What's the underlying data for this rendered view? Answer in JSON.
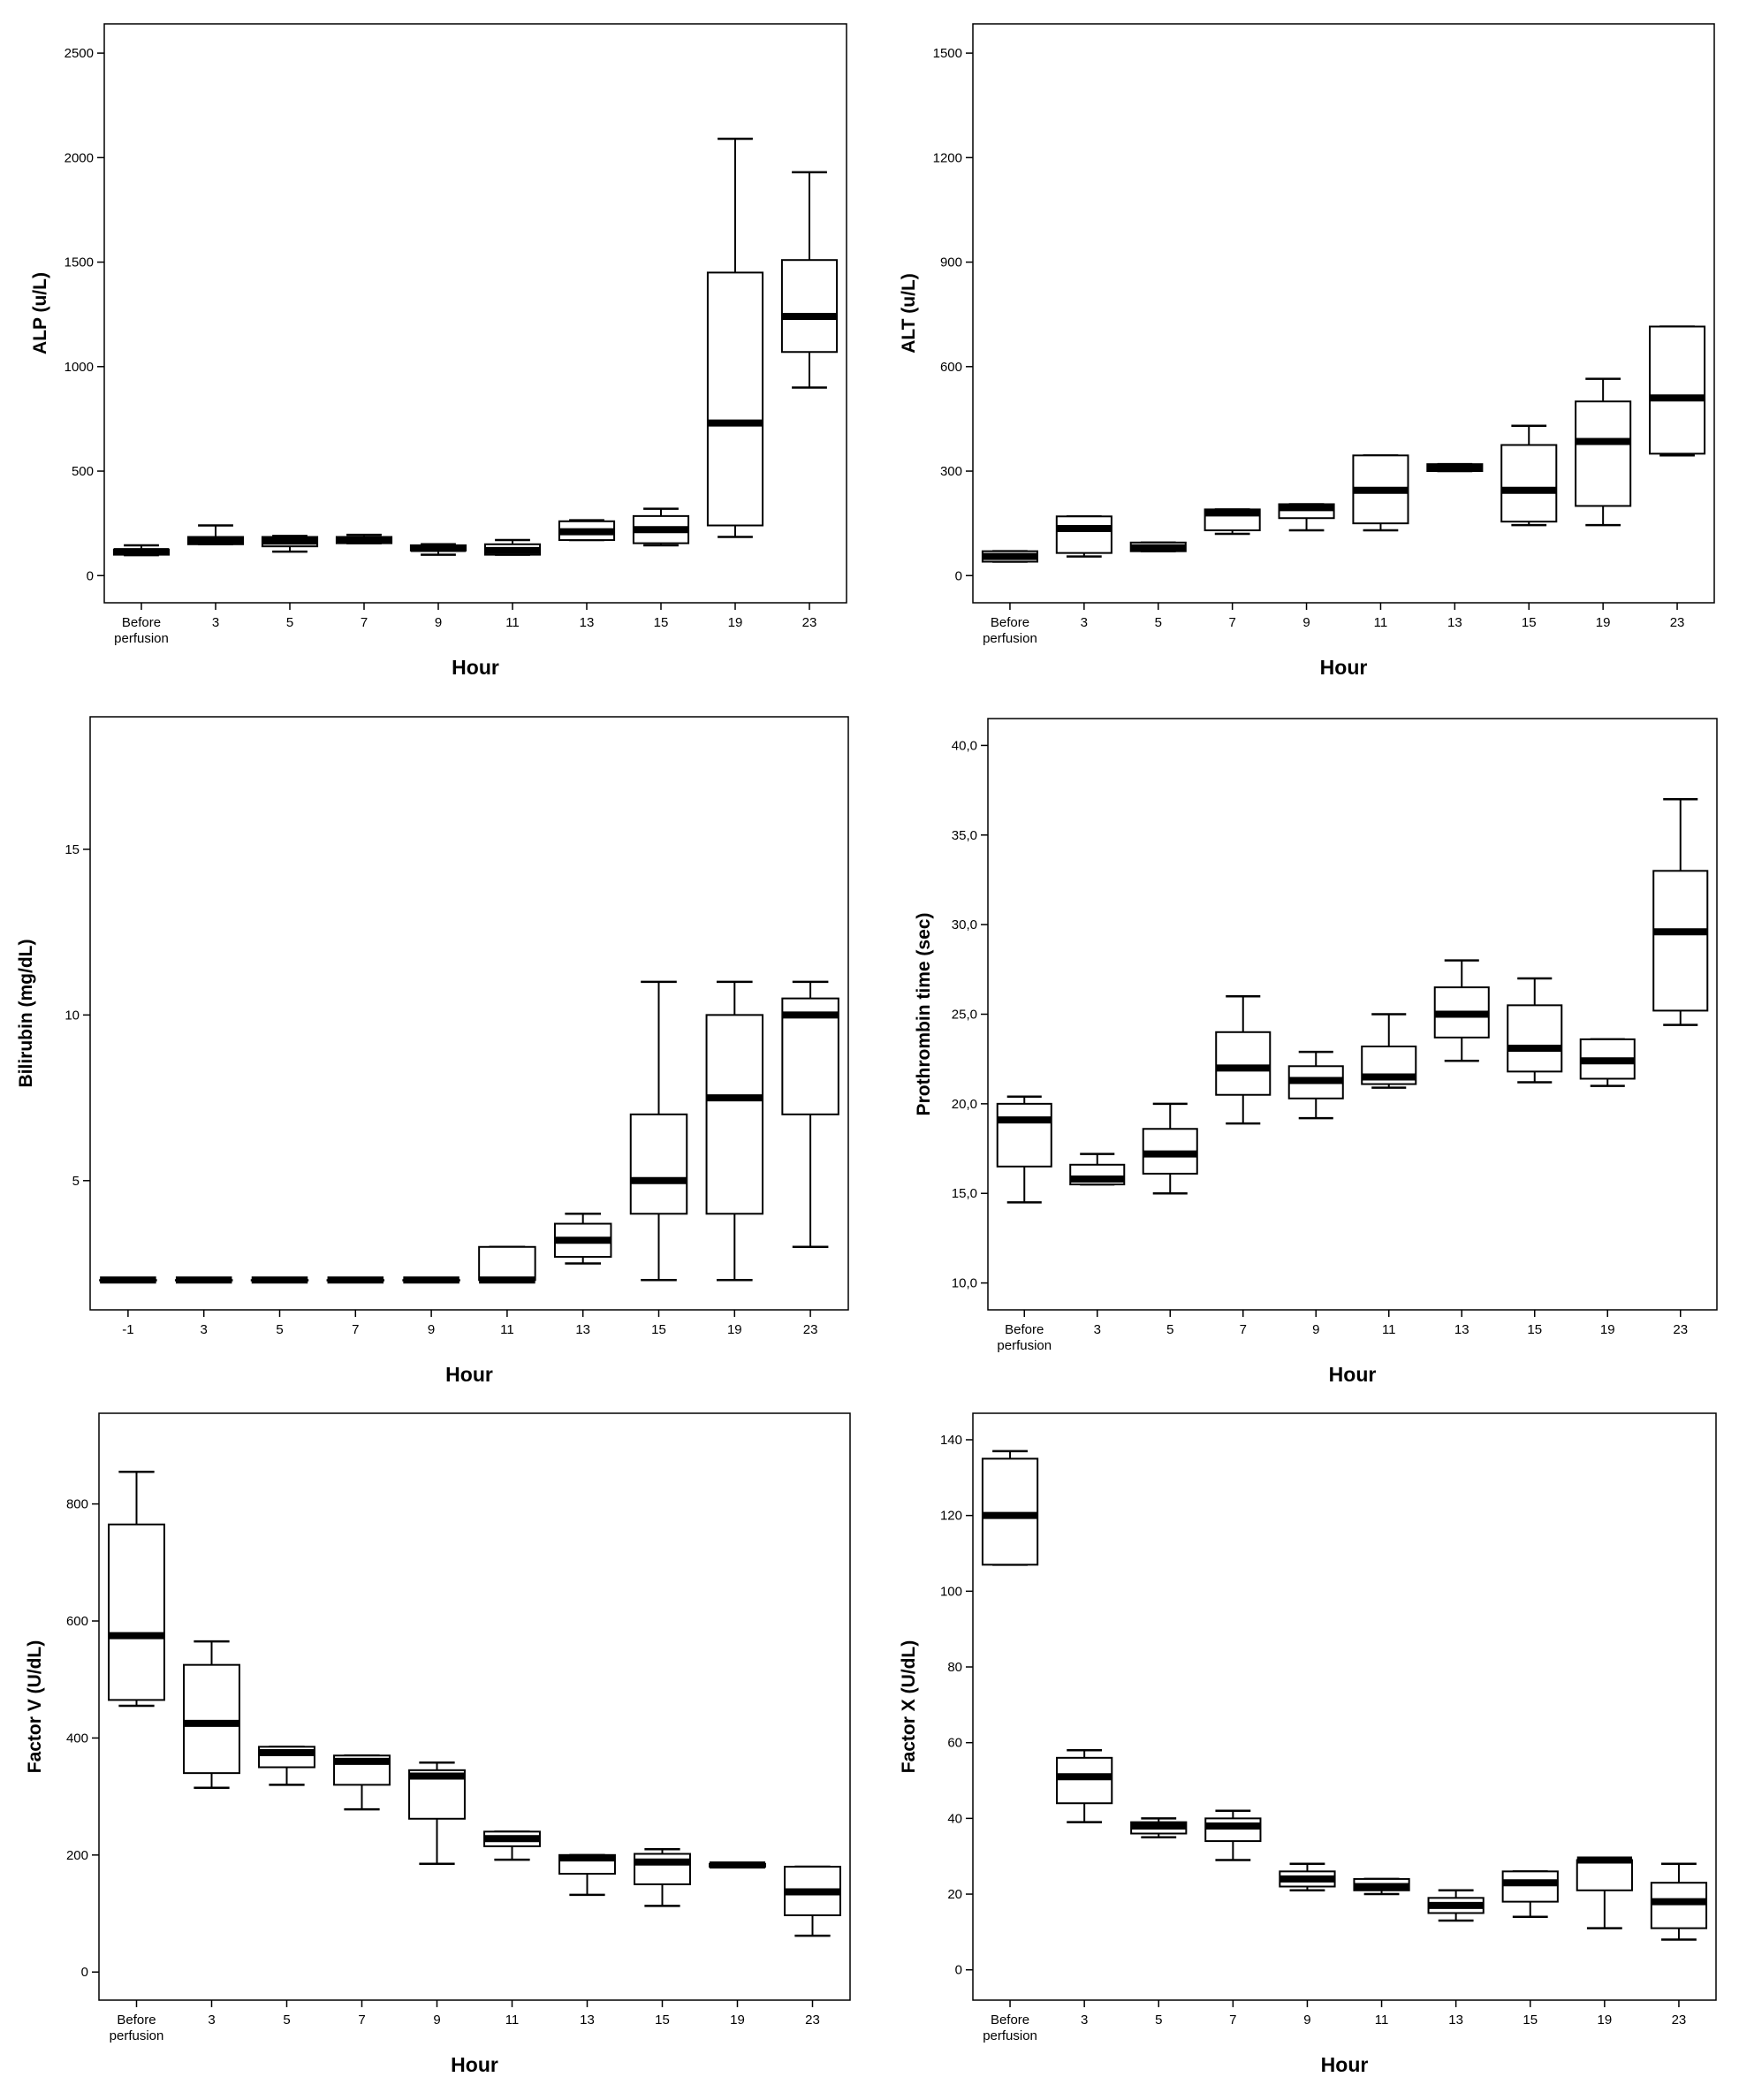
{
  "figure": {
    "background": "#ffffff",
    "ink": "#000000"
  },
  "chart_data": [
    {
      "type": "box",
      "ylabel": "ALP (u/L)",
      "xlabel": "Hour",
      "categories": [
        "Before perfusion",
        "3",
        "5",
        "7",
        "9",
        "11",
        "13",
        "15",
        "19",
        "23"
      ],
      "yticks": [
        "0",
        "500",
        "1000",
        "1500",
        "2000",
        "2500"
      ],
      "ylim": [
        -130,
        2640
      ],
      "boxes": [
        {
          "min": 98,
          "q1": 100,
          "median": 115,
          "q3": 125,
          "max": 145
        },
        {
          "min": 150,
          "q1": 150,
          "median": 170,
          "q3": 185,
          "max": 240
        },
        {
          "min": 115,
          "q1": 140,
          "median": 165,
          "q3": 185,
          "max": 190
        },
        {
          "min": 155,
          "q1": 155,
          "median": 170,
          "q3": 185,
          "max": 195
        },
        {
          "min": 100,
          "q1": 120,
          "median": 130,
          "q3": 145,
          "max": 150
        },
        {
          "min": 100,
          "q1": 100,
          "median": 120,
          "q3": 150,
          "max": 170
        },
        {
          "min": 170,
          "q1": 170,
          "median": 210,
          "q3": 260,
          "max": 265
        },
        {
          "min": 145,
          "q1": 155,
          "median": 220,
          "q3": 285,
          "max": 320
        },
        {
          "min": 185,
          "q1": 240,
          "median": 730,
          "q3": 1450,
          "max": 2090
        },
        {
          "min": 900,
          "q1": 1070,
          "median": 1240,
          "q3": 1510,
          "max": 1930
        }
      ]
    },
    {
      "type": "box",
      "ylabel": "ALT (u/L)",
      "xlabel": "Hour",
      "categories": [
        "Before perfusion",
        "3",
        "5",
        "7",
        "9",
        "11",
        "13",
        "15",
        "19",
        "23"
      ],
      "yticks": [
        "0",
        "300",
        "600",
        "900",
        "1200",
        "1500"
      ],
      "ylim": [
        -78,
        1584
      ],
      "boxes": [
        {
          "min": 40,
          "q1": 40,
          "median": 55,
          "q3": 70,
          "max": 70
        },
        {
          "min": 55,
          "q1": 65,
          "median": 135,
          "q3": 170,
          "max": 170
        },
        {
          "min": 70,
          "q1": 70,
          "median": 80,
          "q3": 95,
          "max": 95
        },
        {
          "min": 120,
          "q1": 130,
          "median": 180,
          "q3": 190,
          "max": 190
        },
        {
          "min": 130,
          "q1": 165,
          "median": 195,
          "q3": 205,
          "max": 205
        },
        {
          "min": 130,
          "q1": 150,
          "median": 245,
          "q3": 345,
          "max": 345
        },
        {
          "min": 300,
          "q1": 300,
          "median": 310,
          "q3": 320,
          "max": 320
        },
        {
          "min": 145,
          "q1": 155,
          "median": 245,
          "q3": 375,
          "max": 430
        },
        {
          "min": 145,
          "q1": 200,
          "median": 385,
          "q3": 500,
          "max": 565
        },
        {
          "min": 345,
          "q1": 350,
          "median": 510,
          "q3": 715,
          "max": 715
        }
      ]
    },
    {
      "type": "box",
      "ylabel": "Bilirubin (mg/dL)",
      "xlabel": "Hour",
      "categories": [
        "-1",
        "3",
        "5",
        "7",
        "9",
        "11",
        "13",
        "15",
        "19",
        "23"
      ],
      "yticks": [
        "5",
        "10",
        "15"
      ],
      "ylim": [
        1.1,
        19.0
      ],
      "boxes": [
        {
          "min": 2.0,
          "q1": 2.0,
          "median": 2.0,
          "q3": 2.0,
          "max": 2.0
        },
        {
          "min": 2.0,
          "q1": 2.0,
          "median": 2.0,
          "q3": 2.0,
          "max": 2.0
        },
        {
          "min": 2.0,
          "q1": 2.0,
          "median": 2.0,
          "q3": 2.0,
          "max": 2.0
        },
        {
          "min": 2.0,
          "q1": 2.0,
          "median": 2.0,
          "q3": 2.0,
          "max": 2.0
        },
        {
          "min": 2.0,
          "q1": 2.0,
          "median": 2.0,
          "q3": 2.0,
          "max": 2.0
        },
        {
          "min": 2.0,
          "q1": 2.0,
          "median": 2.0,
          "q3": 3.0,
          "max": 3.0
        },
        {
          "min": 2.5,
          "q1": 2.7,
          "median": 3.2,
          "q3": 3.7,
          "max": 4.0
        },
        {
          "min": 2.0,
          "q1": 4.0,
          "median": 5.0,
          "q3": 7.0,
          "max": 11.0
        },
        {
          "min": 2.0,
          "q1": 4.0,
          "median": 7.5,
          "q3": 10.0,
          "max": 11.0
        },
        {
          "min": 3.0,
          "q1": 7.0,
          "median": 10.0,
          "q3": 10.5,
          "max": 11.0
        }
      ]
    },
    {
      "type": "box",
      "ylabel": "Prothrombin time (sec)",
      "xlabel": "Hour",
      "categories": [
        "Before perfusion",
        "3",
        "5",
        "7",
        "9",
        "11",
        "13",
        "15",
        "19",
        "23"
      ],
      "yticks": [
        "10,0",
        "15,0",
        "20,0",
        "25,0",
        "30,0",
        "35,0",
        "40,0"
      ],
      "ylim": [
        8.5,
        41.5
      ],
      "boxes": [
        {
          "min": 14.5,
          "q1": 16.5,
          "median": 19.1,
          "q3": 20.0,
          "max": 20.4
        },
        {
          "min": 15.5,
          "q1": 15.5,
          "median": 15.8,
          "q3": 16.6,
          "max": 17.2
        },
        {
          "min": 15.0,
          "q1": 16.1,
          "median": 17.2,
          "q3": 18.6,
          "max": 20.0
        },
        {
          "min": 18.9,
          "q1": 20.5,
          "median": 22.0,
          "q3": 24.0,
          "max": 26.0
        },
        {
          "min": 19.2,
          "q1": 20.3,
          "median": 21.3,
          "q3": 22.1,
          "max": 22.9
        },
        {
          "min": 20.9,
          "q1": 21.1,
          "median": 21.5,
          "q3": 23.2,
          "max": 25.0
        },
        {
          "min": 22.4,
          "q1": 23.7,
          "median": 25.0,
          "q3": 26.5,
          "max": 28.0
        },
        {
          "min": 21.2,
          "q1": 21.8,
          "median": 23.1,
          "q3": 25.5,
          "max": 27.0
        },
        {
          "min": 21.0,
          "q1": 21.4,
          "median": 22.4,
          "q3": 23.6,
          "max": 23.6
        },
        {
          "min": 24.4,
          "q1": 25.2,
          "median": 29.6,
          "q3": 33.0,
          "max": 37.0
        }
      ]
    },
    {
      "type": "box",
      "ylabel": "Factor V (U/dL)",
      "xlabel": "Hour",
      "categories": [
        "Before perfusion",
        "3",
        "5",
        "7",
        "9",
        "11",
        "13",
        "15",
        "19",
        "23"
      ],
      "yticks": [
        "0",
        "200",
        "400",
        "600",
        "800"
      ],
      "ylim": [
        -48,
        955
      ],
      "boxes": [
        {
          "min": 455,
          "q1": 465,
          "median": 575,
          "q3": 765,
          "max": 855
        },
        {
          "min": 315,
          "q1": 340,
          "median": 425,
          "q3": 525,
          "max": 565
        },
        {
          "min": 320,
          "q1": 350,
          "median": 375,
          "q3": 385,
          "max": 385
        },
        {
          "min": 278,
          "q1": 320,
          "median": 360,
          "q3": 370,
          "max": 370
        },
        {
          "min": 185,
          "q1": 262,
          "median": 335,
          "q3": 345,
          "max": 358
        },
        {
          "min": 192,
          "q1": 215,
          "median": 228,
          "q3": 240,
          "max": 240
        },
        {
          "min": 132,
          "q1": 168,
          "median": 195,
          "q3": 200,
          "max": 200
        },
        {
          "min": 113,
          "q1": 150,
          "median": 188,
          "q3": 202,
          "max": 210
        },
        {
          "min": 180,
          "q1": 180,
          "median": 183,
          "q3": 185,
          "max": 185
        },
        {
          "min": 62,
          "q1": 97,
          "median": 137,
          "q3": 180,
          "max": 180
        }
      ]
    },
    {
      "type": "box",
      "ylabel": "Factor X (U/dL)",
      "xlabel": "Hour",
      "categories": [
        "Before perfusion",
        "3",
        "5",
        "7",
        "9",
        "11",
        "13",
        "15",
        "19",
        "23"
      ],
      "yticks": [
        "0",
        "20",
        "40",
        "60",
        "80",
        "100",
        "120",
        "140"
      ],
      "ylim": [
        -8,
        147
      ],
      "boxes": [
        {
          "min": 107,
          "q1": 107,
          "median": 120,
          "q3": 135,
          "max": 137
        },
        {
          "min": 39,
          "q1": 44,
          "median": 51,
          "q3": 56,
          "max": 58
        },
        {
          "min": 35,
          "q1": 36,
          "median": 38,
          "q3": 39,
          "max": 40
        },
        {
          "min": 29,
          "q1": 34,
          "median": 38,
          "q3": 40,
          "max": 42
        },
        {
          "min": 21,
          "q1": 22,
          "median": 24,
          "q3": 26,
          "max": 28
        },
        {
          "min": 20,
          "q1": 21,
          "median": 22,
          "q3": 24,
          "max": 24
        },
        {
          "min": 13,
          "q1": 15,
          "median": 17,
          "q3": 19,
          "max": 21
        },
        {
          "min": 14,
          "q1": 18,
          "median": 23,
          "q3": 26,
          "max": 26
        },
        {
          "min": 11,
          "q1": 21,
          "median": 29,
          "q3": 29,
          "max": 29
        },
        {
          "min": 8,
          "q1": 11,
          "median": 18,
          "q3": 23,
          "max": 28
        }
      ]
    }
  ]
}
